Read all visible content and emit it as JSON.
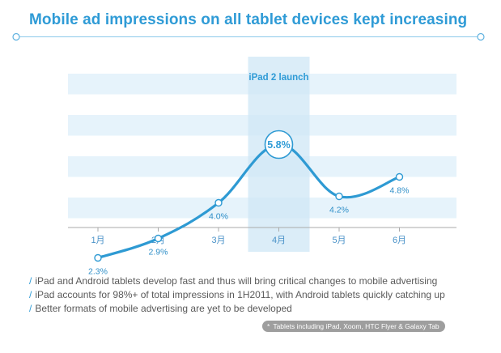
{
  "title": "Mobile ad impressions on all tablet devices kept increasing",
  "chart_data": {
    "type": "line",
    "categories": [
      "1月",
      "2月",
      "3月",
      "4月",
      "5月",
      "6月"
    ],
    "values": [
      2.3,
      2.9,
      4.0,
      5.8,
      4.2,
      4.8
    ],
    "data_labels": [
      "2.3%",
      "2.9%",
      "4.0%",
      "5.8%",
      "4.2%",
      "4.8%"
    ],
    "highlight": {
      "category": "4月",
      "label": "iPad 2 launch"
    },
    "ylim": [
      0,
      7
    ],
    "grid": false,
    "colors": {
      "line": "#2e9ad3",
      "highlight_band": "#cfe7f6",
      "stripe": "#e6f3fb",
      "text": "#2f9bd6",
      "label": "#2f8fc8"
    }
  },
  "bullets": [
    "iPad and Android tablets develop fast and thus will bring critical changes to mobile advertising",
    "iPad accounts for 98%+ of total impressions in 1H2011, with Android tablets quickly catching up",
    "Better formats of mobile advertising are yet to be developed"
  ],
  "bullet_marker": "/",
  "footnote": {
    "marker": "*",
    "text": "Tablets including iPad, Xoom, HTC Flyer & Galaxy Tab"
  }
}
